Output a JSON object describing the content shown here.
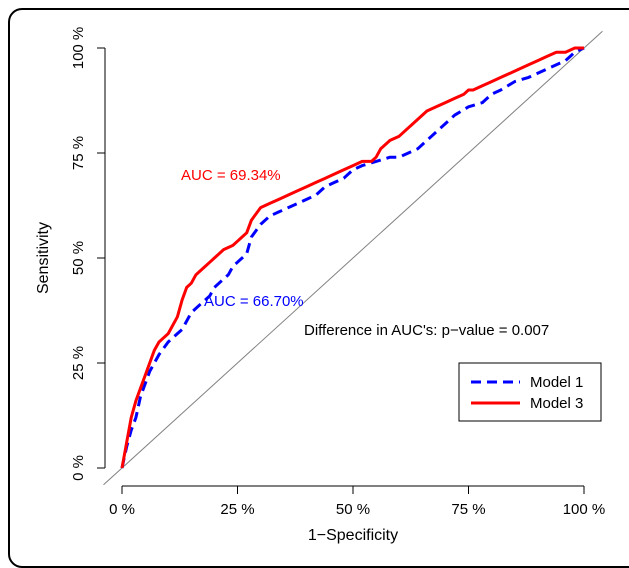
{
  "chart_data": {
    "type": "line",
    "title": "",
    "xlabel": "1−Specificity",
    "ylabel": "Sensitivity",
    "xlim": [
      0,
      100
    ],
    "ylim": [
      0,
      100
    ],
    "x_ticks": [
      "0 %",
      "25 %",
      "50 %",
      "75 %",
      "100 %"
    ],
    "y_ticks": [
      "0 %",
      "25 %",
      "50 %",
      "75 %",
      "100 %"
    ],
    "grid": false,
    "legend_position": "bottom-right",
    "reference_line": {
      "from": [
        0,
        0
      ],
      "to": [
        100,
        100
      ],
      "color": "#808080"
    },
    "series": [
      {
        "name": "Model 1",
        "color": "#0000ff",
        "style": "dashed",
        "x": [
          0,
          1,
          2,
          3,
          4,
          5,
          6,
          8,
          10,
          12,
          13,
          14,
          15,
          16,
          17,
          18,
          19,
          20,
          21,
          22,
          23,
          24,
          25,
          26,
          27,
          28,
          30,
          32,
          34,
          36,
          38,
          40,
          42,
          44,
          46,
          48,
          50,
          52,
          55,
          58,
          60,
          62,
          64,
          66,
          68,
          70,
          72,
          75,
          78,
          80,
          82,
          85,
          88,
          92,
          96,
          98,
          100
        ],
        "y": [
          0,
          5,
          9,
          12,
          17,
          20,
          23,
          27,
          30,
          32,
          33,
          35,
          37,
          38,
          39,
          40,
          41,
          43,
          44,
          45,
          46,
          48,
          49,
          50,
          51,
          55,
          58,
          60,
          61,
          62,
          63,
          64,
          65,
          67,
          68,
          69,
          71,
          72,
          73,
          74,
          74,
          75,
          76,
          78,
          80,
          82,
          84,
          86,
          87,
          89,
          90,
          92,
          93,
          95,
          97,
          99,
          100
        ]
      },
      {
        "name": "Model 3",
        "color": "#ff0000",
        "style": "solid",
        "x": [
          0,
          1,
          2,
          3,
          4,
          5,
          6,
          7,
          8,
          9,
          10,
          12,
          13,
          14,
          15,
          16,
          17,
          18,
          19,
          20,
          22,
          24,
          25,
          26,
          27,
          28,
          30,
          32,
          34,
          36,
          38,
          40,
          42,
          44,
          46,
          48,
          50,
          52,
          54,
          55,
          56,
          58,
          60,
          62,
          64,
          66,
          68,
          70,
          72,
          74,
          75,
          76,
          78,
          80,
          82,
          84,
          86,
          88,
          90,
          92,
          94,
          96,
          98,
          100
        ],
        "y": [
          0,
          6,
          12,
          16,
          19,
          22,
          25,
          28,
          30,
          31,
          32,
          36,
          40,
          43,
          44,
          46,
          47,
          48,
          49,
          50,
          52,
          53,
          54,
          55,
          56,
          59,
          62,
          63,
          64,
          65,
          66,
          67,
          68,
          69,
          70,
          71,
          72,
          73,
          73,
          74,
          76,
          78,
          79,
          81,
          83,
          85,
          86,
          87,
          88,
          89,
          90,
          90,
          91,
          92,
          93,
          94,
          95,
          96,
          97,
          98,
          99,
          99,
          100,
          100
        ]
      }
    ],
    "annotations": [
      {
        "text": "AUC = 69.34%",
        "color": "#ff0000"
      },
      {
        "text": "AUC = 66.70%",
        "color": "#0000ff"
      },
      {
        "text": "Difference in AUC's: p−value = 0.007",
        "color": "#000000"
      }
    ]
  }
}
